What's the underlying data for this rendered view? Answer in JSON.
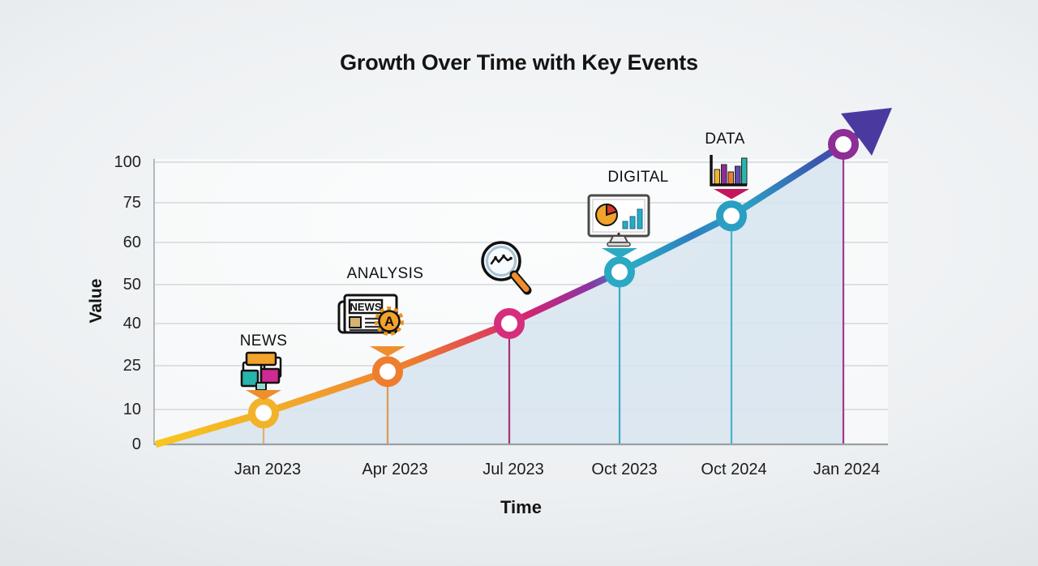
{
  "title": "Growth Over Time with Key Events",
  "chart_data": {
    "type": "line",
    "title": "Growth Over Time with Key Events",
    "xlabel": "Time",
    "ylabel": "Value",
    "categories": [
      "Jan 2023",
      "Apr 2023",
      "Jul 2023",
      "Oct 2023",
      "Oct 2024",
      "Jan 2024"
    ],
    "values": [
      9,
      23,
      40,
      53,
      70,
      111
    ],
    "yticks": [
      100,
      75,
      60,
      50,
      40,
      25,
      10,
      0
    ],
    "ytick_labels": [
      "100",
      "75",
      "60",
      "50",
      "40",
      "25",
      "10",
      "0"
    ],
    "ylim": [
      0,
      112
    ],
    "grid": true,
    "area_fill": true,
    "legend": "none",
    "arrow_end": true,
    "events": [
      {
        "label": "NEWS",
        "category": "Jan 2023",
        "icon": "diagram-blocks-icon",
        "pointer_color": "#ef8e2d"
      },
      {
        "label": "ANALYSIS",
        "category": "Apr 2023",
        "icon": "newspaper-gear-icon",
        "pointer_color": "#ef8e2d"
      },
      {
        "label": "",
        "category": "Jul 2023",
        "icon": "magnifier-trend-icon",
        "pointer_color": ""
      },
      {
        "label": "DIGITAL",
        "category": "Oct 2023",
        "icon": "monitor-analytics-icon",
        "pointer_color": "#2aa9c4"
      },
      {
        "label": "DATA",
        "category": "Oct 2024",
        "icon": "bar-chart-icon",
        "pointer_color": "#c2185b"
      }
    ],
    "colors": {
      "line_gradient": [
        {
          "o": 0,
          "c": "#f7c71f"
        },
        {
          "o": 0.18,
          "c": "#f2a62a"
        },
        {
          "o": 0.33,
          "c": "#ee7d2f"
        },
        {
          "o": 0.48,
          "c": "#d6246e"
        },
        {
          "o": 0.57,
          "c": "#8a35a5"
        },
        {
          "o": 0.63,
          "c": "#2aa9c4"
        },
        {
          "o": 0.71,
          "c": "#2e7fc0"
        },
        {
          "o": 0.78,
          "c": "#2aa4c6"
        },
        {
          "o": 0.89,
          "c": "#3c55ae"
        },
        {
          "o": 1,
          "c": "#4a3aa0"
        }
      ],
      "markers": [
        "#f2b32b",
        "#ee7d2f",
        "#d62e7c",
        "#2aa8c4",
        "#2a9fc4",
        "#8e2d96"
      ],
      "drop_lines": [
        "#e6b06a",
        "#d99a52",
        "#a8336f",
        "#3aa9c4",
        "#49b2cc",
        "#a03890"
      ],
      "area_fill": "#d7e4ee",
      "arrow": "#4a3aa0",
      "grid": "#d3d8db",
      "axis_y": "#b3b9bc",
      "axis_x": "#99a0a4",
      "icon_palette": {
        "orange": "#f2a32c",
        "magenta": "#cf2a93",
        "teal": "#27b5ab",
        "purple": "#8e2d96",
        "red": "#d63a2a"
      }
    }
  }
}
